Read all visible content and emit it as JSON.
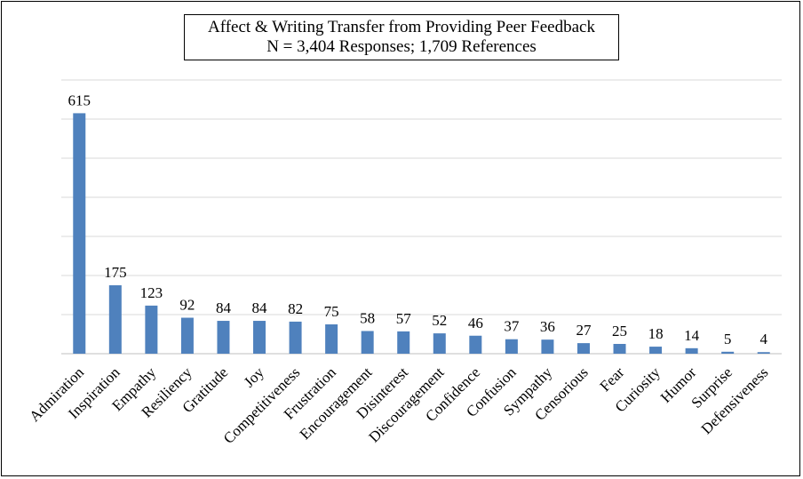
{
  "chart_data": {
    "type": "bar",
    "title": "Affect & Writing Transfer from Providing Peer Feedback",
    "subtitle": "N = 3,404 Responses; 1,709 References",
    "categories": [
      "Admiration",
      "Inspiration",
      "Empathy",
      "Resiliency",
      "Gratitude",
      "Joy",
      "Competitiveness",
      "Frustration",
      "Encouragement",
      "Disinterest",
      "Discouragement",
      "Confidence",
      "Confusion",
      "Sympathy",
      "Censorious",
      "Fear",
      "Curiosity",
      "Humor",
      "Surprise",
      "Defensiveness"
    ],
    "values": [
      615,
      175,
      123,
      92,
      84,
      84,
      82,
      75,
      58,
      57,
      52,
      46,
      37,
      36,
      27,
      25,
      18,
      14,
      5,
      4
    ],
    "ylim": [
      0,
      700
    ],
    "y_gridline_step": 100,
    "grid": true,
    "legend": "none",
    "colors": {
      "bar": "#4f81bd",
      "grid": "#d9d9d9",
      "axis": "#bfbfbf"
    }
  }
}
